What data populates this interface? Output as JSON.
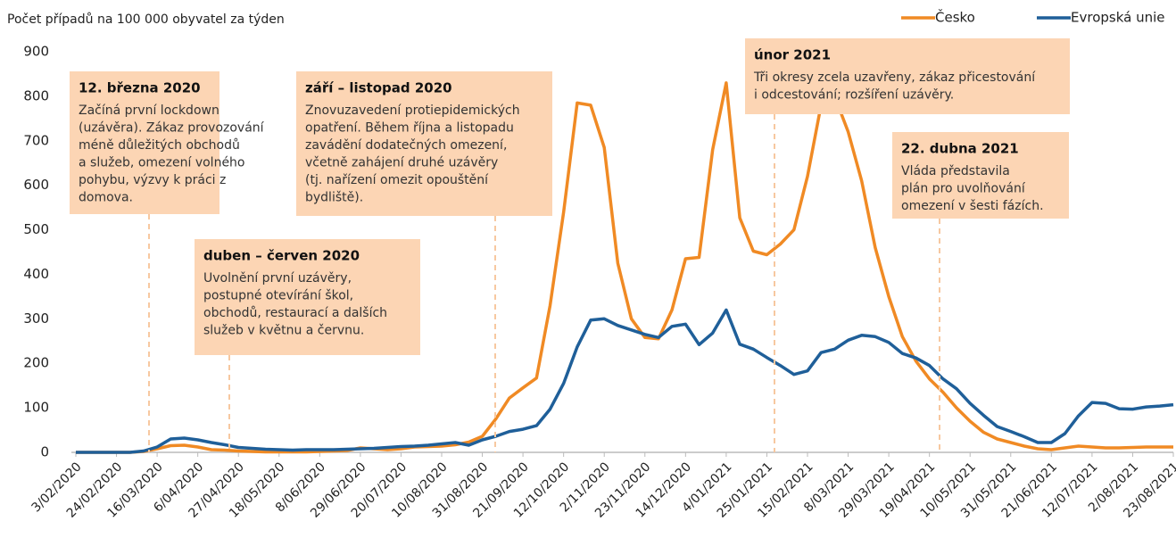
{
  "chart_data": {
    "type": "line",
    "y_label": "Počet případů na 100 000 obyvatel za týden",
    "categories": [
      "3/02/2020",
      null,
      null,
      "24/02/2020",
      null,
      null,
      "16/03/2020",
      null,
      null,
      "6/04/2020",
      null,
      null,
      "27/04/2020",
      null,
      null,
      "18/05/2020",
      null,
      null,
      "8/06/2020",
      null,
      null,
      "29/06/2020",
      null,
      null,
      "20/07/2020",
      null,
      null,
      "10/08/2020",
      null,
      null,
      "31/08/2020",
      null,
      null,
      "21/09/2020",
      null,
      null,
      "12/10/2020",
      null,
      null,
      "2/11/2020",
      null,
      null,
      "23/11/2020",
      null,
      null,
      "14/12/2020",
      null,
      null,
      "4/01/2021",
      null,
      null,
      "25/01/2021",
      null,
      null,
      "15/02/2021",
      null,
      null,
      "8/03/2021",
      null,
      null,
      "29/03/2021",
      null,
      null,
      "19/04/2021",
      null,
      null,
      "10/05/2021",
      null,
      null,
      "31/05/2021",
      null,
      null,
      "21/06/2021",
      null,
      null,
      "12/07/2021",
      null,
      null,
      "2/08/2021",
      null,
      null,
      "23/08/2021"
    ],
    "series": [
      {
        "name": "Česko",
        "color": "#f08a24",
        "values": [
          0,
          0,
          0,
          0,
          0,
          2,
          8,
          15,
          16,
          12,
          6,
          5,
          3,
          2,
          1,
          1,
          1,
          1,
          2,
          3,
          4,
          10,
          8,
          6,
          8,
          12,
          13,
          14,
          17,
          23,
          36,
          75,
          122,
          145,
          167,
          330,
          540,
          785,
          780,
          685,
          425,
          300,
          258,
          255,
          320,
          435,
          438,
          680,
          830,
          527,
          452,
          444,
          468,
          500,
          620,
          780,
          800,
          720,
          610,
          460,
          350,
          260,
          205,
          165,
          135,
          100,
          70,
          45,
          30,
          22,
          14,
          8,
          6,
          10,
          14,
          12,
          10,
          10,
          11,
          12,
          12,
          12
        ]
      },
      {
        "name": "Evropská unie",
        "color": "#1f5f99",
        "values": [
          0,
          0,
          0,
          0,
          0,
          3,
          12,
          30,
          32,
          28,
          22,
          17,
          11,
          9,
          7,
          6,
          5,
          6,
          6,
          6,
          7,
          8,
          9,
          11,
          13,
          14,
          16,
          19,
          22,
          16,
          28,
          36,
          47,
          52,
          60,
          97,
          155,
          237,
          297,
          300,
          285,
          275,
          265,
          258,
          283,
          288,
          242,
          268,
          320,
          243,
          232,
          213,
          195,
          175,
          183,
          224,
          232,
          252,
          263,
          260,
          247,
          222,
          212,
          195,
          165,
          143,
          110,
          83,
          58,
          47,
          35,
          22,
          22,
          42,
          82,
          112,
          110,
          98,
          97,
          102,
          104,
          107
        ]
      }
    ],
    "ylim": [
      0,
      900
    ],
    "yticks": [
      0,
      100,
      200,
      300,
      400,
      500,
      600,
      700,
      800,
      900
    ],
    "grid": false,
    "legend": "top-right",
    "annotations": [
      {
        "title": "12. března 2020",
        "lines": [
          "Začíná první lockdown",
          "(uzávěra). Zákaz provozování",
          "méně důležitých obchodů",
          "a služeb, omezení volného",
          "pohybu, výzvy k práci z",
          "domova."
        ]
      },
      {
        "title": "duben – červen 2020",
        "lines": [
          "Uvolnění první uzávěry,",
          "postupné otevírání škol,",
          "obchodů, restaurací a dalších",
          "služeb v květnu a červnu."
        ]
      },
      {
        "title": "září – listopad 2020",
        "lines": [
          "Znovuzavedení protiepidemických",
          "opatření. Během října a listopadu",
          "zavádění dodatečných omezení,",
          "včetně zahájení druhé uzávěry",
          "(tj. nařízení omezit opouštění",
          "bydliště)."
        ]
      },
      {
        "title": "únor 2021",
        "lines": [
          "Tři okresy zcela uzavřeny, zákaz přicestování",
          "i odcestování; rozšíření uzávěry."
        ]
      },
      {
        "title": "22. dubna 2021",
        "lines": [
          "Vláda představila",
          "plán pro uvolňování",
          "omezení v šesti fázích."
        ]
      }
    ]
  }
}
